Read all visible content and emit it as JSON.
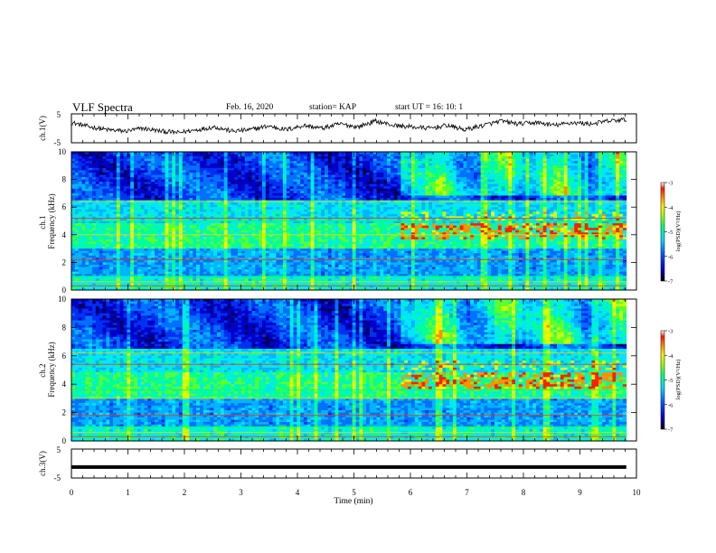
{
  "header": {
    "title": "VLF Spectra",
    "date": "Feb. 16, 2020",
    "station": "station= KAP",
    "start": "start  UT =   16: 10: 1"
  },
  "colors": {
    "scale": [
      "#0000c8",
      "#0050ff",
      "#00d2ff",
      "#00ff7a",
      "#8cff00",
      "#ffee00",
      "#ff8a00",
      "#ff1a00",
      "#c80000"
    ],
    "trace": "#000000"
  },
  "chart_data": [
    {
      "type": "line",
      "name": "ch1-waveform",
      "ylabel": "ch.1(V)",
      "ylim": [
        -5,
        5
      ],
      "yticks": [
        "5",
        "-5"
      ],
      "xlim": [
        0,
        10
      ],
      "x_extent": [
        0,
        9.82
      ],
      "y_trend": [
        2.0,
        0.5,
        -0.5,
        -1.0,
        0.0,
        -1.0,
        -1.5,
        -0.5,
        0.5,
        -1.0,
        -0.5,
        0.8,
        -0.5,
        1.0,
        0.0,
        1.5,
        0.5,
        2.5,
        1.0,
        0.5,
        0.0,
        1.0,
        -0.5,
        1.0,
        2.5,
        1.5,
        2.0,
        1.0,
        2.0,
        1.5,
        2.5,
        3.0
      ]
    },
    {
      "type": "heatmap",
      "name": "ch1-spectrogram",
      "ylabel": "ch.1\nFrequency (kHz)",
      "ylim": [
        0,
        10
      ],
      "yticks": [
        "0",
        "2",
        "4",
        "6",
        "8",
        "10"
      ],
      "xlim": [
        0,
        10
      ],
      "x_extent": [
        0,
        9.82
      ],
      "colorbar": {
        "range": [
          -7,
          -3
        ],
        "ticks": [
          "-3",
          "-4",
          "-5",
          "-6",
          "-7"
        ],
        "label": "log(PSD)(V²/Hz)"
      },
      "bands_khz": [
        0.3,
        0.6,
        1.0,
        2.2,
        4.0,
        5.0,
        5.2,
        6.4
      ],
      "emission_window_min": [
        5.85,
        9.82
      ],
      "emission_freq_khz": [
        3.7,
        5.6
      ]
    },
    {
      "type": "heatmap",
      "name": "ch2-spectrogram",
      "ylabel": "ch.2\nFrequency (kHz)",
      "ylim": [
        0,
        10
      ],
      "yticks": [
        "0",
        "2",
        "4",
        "6",
        "8",
        "10"
      ],
      "xlim": [
        0,
        10
      ],
      "x_extent": [
        0,
        9.82
      ],
      "colorbar": {
        "range": [
          -7,
          -3
        ],
        "ticks": [
          "-3",
          "-4",
          "-5",
          "-6",
          "-7"
        ],
        "label": "log(PSD)(V²/Hz)"
      },
      "bands_khz": [
        0.3,
        0.6,
        1.0,
        1.8,
        3.0,
        3.6,
        5.4,
        6.2
      ],
      "emission_window_min": [
        5.85,
        9.82
      ],
      "emission_freq_khz": [
        3.7,
        5.6
      ]
    },
    {
      "type": "line",
      "name": "ch3-waveform",
      "ylabel": "ch.3(V)",
      "ylim": [
        -5,
        5
      ],
      "yticks": [
        "5",
        "-5"
      ],
      "xlim": [
        0,
        10
      ],
      "x_extent": [
        0,
        9.82
      ],
      "value": -1.2
    }
  ],
  "xaxis": {
    "label": "Time  (min)",
    "ticks": [
      "0",
      "1",
      "2",
      "3",
      "4",
      "5",
      "6",
      "7",
      "8",
      "9",
      "10"
    ]
  }
}
